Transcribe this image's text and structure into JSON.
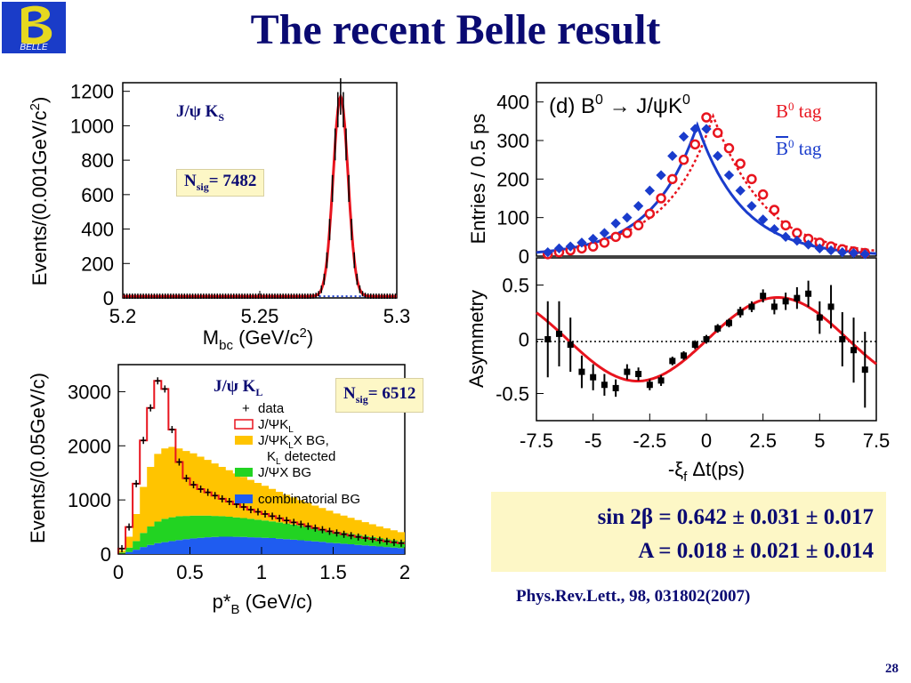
{
  "slide": {
    "title": "The recent Belle result",
    "logo_text": "BELLE",
    "result_line1": "sin 2β = 0.642 ± 0.031 ± 0.017",
    "result_line2": "A = 0.018 ± 0.021 ± 0.014",
    "reference": "Phys.Rev.Lett., 98, 031802(2007)",
    "page_number": "28",
    "colors": {
      "title": "#0a0a72",
      "highlight_box": "#fdf7c6",
      "b0_tag": "#e8141e",
      "b0bar_tag": "#1a3ccc"
    }
  },
  "annotations": {
    "ks_label": "J/ψ K",
    "ks_sub": "S",
    "ks_nsig": "= 7482",
    "kl_label": "J/ψ K",
    "kl_sub": "L",
    "kl_nsig": "= 6512",
    "n": "N",
    "n_sub": "sig",
    "b0_tag": "tag",
    "b0bar_tag": "tag",
    "b": "B",
    "sup0": "0"
  },
  "chart_data": [
    {
      "id": "mbc",
      "type": "line",
      "xlabel": "M",
      "xlabel_sub": "bc",
      "xlabel_rest": " (GeV/c",
      "xlabel_sup": "2",
      "xlabel_end": ")",
      "ylabel": "Events/(0.001GeV/c",
      "ylabel_sup": "2",
      "ylabel_end": ")",
      "xlim": [
        5.2,
        5.3
      ],
      "ylim": [
        0,
        1250
      ],
      "x_ticks": [
        "5.2",
        "5.25",
        "5.3"
      ],
      "y_ticks": [
        "0",
        "200",
        "400",
        "600",
        "800",
        "1000",
        "1200"
      ],
      "peak_x": 5.2795,
      "peak_y": 1170,
      "sigma": 0.0027,
      "background": 10
    },
    {
      "id": "pstar",
      "type": "area",
      "xlabel": "p*",
      "xlabel_sub": "B",
      "xlabel_rest": " (GeV/c)",
      "ylabel": "Events/(0.05GeV/c)",
      "xlim": [
        0,
        2
      ],
      "ylim": [
        0,
        3500
      ],
      "x_ticks": [
        "0",
        "0.5",
        "1",
        "1.5",
        "2"
      ],
      "y_ticks": [
        "0",
        "1000",
        "2000",
        "3000"
      ],
      "x": [
        0.05,
        0.1,
        0.15,
        0.2,
        0.25,
        0.3,
        0.35,
        0.4,
        0.45,
        0.5,
        0.55,
        0.6,
        0.65,
        0.7,
        0.75,
        0.8,
        0.85,
        0.9,
        0.95,
        1.0,
        1.05,
        1.1,
        1.15,
        1.2,
        1.25,
        1.3,
        1.35,
        1.4,
        1.45,
        1.5,
        1.55,
        1.6,
        1.65,
        1.7,
        1.75,
        1.8,
        1.85,
        1.9,
        1.95,
        2.0
      ],
      "series": [
        {
          "name": "combinatorial BG",
          "color": "#1f5cf0",
          "values": [
            10,
            40,
            80,
            130,
            170,
            200,
            220,
            240,
            260,
            275,
            290,
            300,
            310,
            315,
            320,
            320,
            318,
            315,
            310,
            305,
            300,
            295,
            285,
            275,
            265,
            255,
            245,
            235,
            225,
            210,
            200,
            190,
            180,
            170,
            160,
            150,
            140,
            130,
            120,
            110
          ]
        },
        {
          "name": "J/ΨX BG",
          "color": "#22d322",
          "values": [
            20,
            80,
            160,
            260,
            340,
            400,
            430,
            440,
            440,
            430,
            420,
            410,
            400,
            390,
            380,
            370,
            360,
            350,
            340,
            330,
            320,
            310,
            300,
            290,
            280,
            270,
            260,
            250,
            240,
            230,
            215,
            205,
            195,
            185,
            175,
            165,
            155,
            145,
            135,
            125
          ]
        },
        {
          "name": "J/ΨK_L X BG, K_L detected",
          "color": "#ffc400",
          "values": [
            40,
            200,
            500,
            850,
            1100,
            1250,
            1300,
            1300,
            1250,
            1200,
            1150,
            1090,
            1030,
            970,
            910,
            860,
            810,
            760,
            720,
            680,
            640,
            600,
            565,
            530,
            500,
            470,
            440,
            410,
            385,
            360,
            335,
            315,
            295,
            275,
            255,
            235,
            215,
            200,
            185,
            170
          ]
        },
        {
          "name": "J/ΨK_L",
          "color": "#e8141e",
          "values": [
            100,
            500,
            1300,
            2100,
            2700,
            3200,
            3050,
            2300,
            1700,
            1400,
            1280,
            1200,
            1140,
            1080,
            1020,
            970,
            920,
            870,
            820,
            780,
            740,
            700,
            660,
            620,
            585,
            550,
            515,
            480,
            450,
            420,
            390,
            365,
            340,
            315,
            295,
            275,
            255,
            235,
            215,
            200
          ]
        }
      ],
      "legend": [
        "data",
        "J/ΨK",
        "J/ΨK",
        "X BG,",
        "K",
        "detected",
        "J/ΨX BG",
        "combinatorial BG"
      ],
      "legend_sub_L": "L"
    },
    {
      "id": "dt",
      "type": "scatter",
      "title": "(d) B",
      "title_sup": "0",
      "title_rest": "→ J/ψK",
      "title_sup2": "0",
      "ylabel": "Entries / 0.5 ps",
      "xlim": [
        -7.5,
        7.5
      ],
      "ylim": [
        0,
        450
      ],
      "y_ticks": [
        "0",
        "100",
        "200",
        "300",
        "400"
      ],
      "x": [
        -7,
        -6.5,
        -6,
        -5.5,
        -5,
        -4.5,
        -4,
        -3.5,
        -3,
        -2.5,
        -2,
        -1.5,
        -1,
        -0.5,
        0,
        0.5,
        1,
        1.5,
        2,
        2.5,
        3,
        3.5,
        4,
        4.5,
        5,
        5.5,
        6,
        6.5,
        7
      ],
      "series": [
        {
          "name": "B0 tag",
          "color": "#e8141e",
          "values": [
            5,
            10,
            15,
            20,
            25,
            35,
            50,
            60,
            80,
            110,
            150,
            200,
            250,
            290,
            360,
            320,
            280,
            240,
            200,
            160,
            120,
            80,
            60,
            45,
            35,
            25,
            18,
            12,
            8
          ]
        },
        {
          "name": "B0bar tag",
          "color": "#1a3ccc",
          "values": [
            10,
            20,
            25,
            35,
            45,
            60,
            85,
            100,
            130,
            170,
            210,
            260,
            310,
            330,
            330,
            260,
            210,
            170,
            130,
            95,
            70,
            50,
            40,
            30,
            20,
            15,
            10,
            8,
            5
          ]
        }
      ]
    },
    {
      "id": "asym",
      "type": "scatter",
      "xlabel": "-ξ",
      "xlabel_sub": "f",
      "xlabel_rest": " Δt(ps)",
      "ylabel": "Asymmetry",
      "xlim": [
        -7.5,
        7.5
      ],
      "ylim": [
        -0.75,
        0.75
      ],
      "x_ticks": [
        "-7.5",
        "-5",
        "-2.5",
        "0",
        "2.5",
        "5",
        "7.5"
      ],
      "y_ticks": [
        "-0.5",
        "0",
        "0.5"
      ],
      "x": [
        -7,
        -6.5,
        -6,
        -5.5,
        -5,
        -4.5,
        -4,
        -3.5,
        -3,
        -2.5,
        -2,
        -1.5,
        -1,
        -0.5,
        0,
        0.5,
        1,
        1.5,
        2,
        2.5,
        3,
        3.5,
        4,
        4.5,
        5,
        5.5,
        6,
        6.5,
        7
      ],
      "values": [
        0.0,
        0.05,
        -0.05,
        -0.3,
        -0.35,
        -0.42,
        -0.45,
        -0.3,
        -0.32,
        -0.42,
        -0.38,
        -0.2,
        -0.15,
        -0.05,
        0.0,
        0.1,
        0.15,
        0.25,
        0.3,
        0.4,
        0.3,
        0.35,
        0.38,
        0.42,
        0.2,
        0.3,
        0.0,
        -0.1,
        -0.28
      ],
      "errors": [
        0.35,
        0.3,
        0.25,
        0.15,
        0.12,
        0.1,
        0.08,
        0.07,
        0.06,
        0.05,
        0.05,
        0.04,
        0.04,
        0.04,
        0.04,
        0.04,
        0.04,
        0.05,
        0.05,
        0.06,
        0.07,
        0.08,
        0.1,
        0.12,
        0.15,
        0.2,
        0.25,
        0.3,
        0.35
      ],
      "fit": {
        "S": 0.642,
        "A": 0.018,
        "tau": 1.53,
        "dm": 0.507
      }
    }
  ]
}
